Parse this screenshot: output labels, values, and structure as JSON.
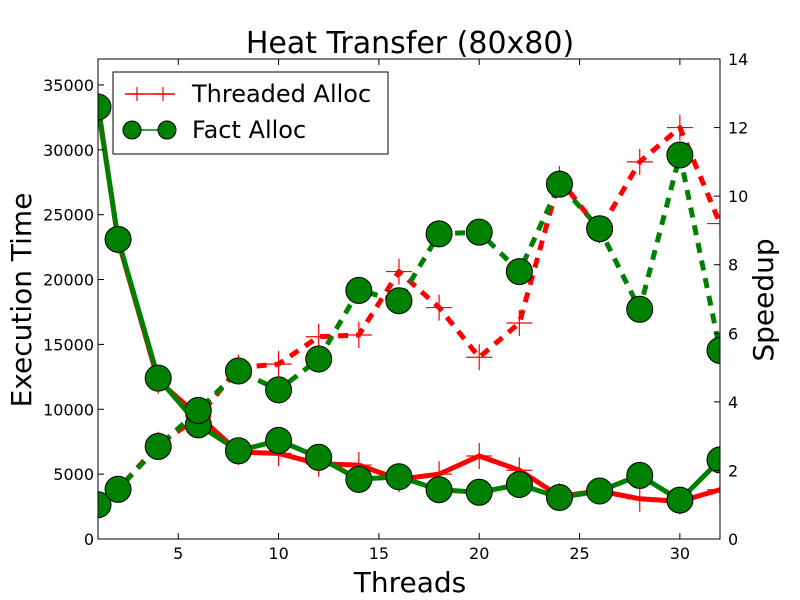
{
  "chart_data": {
    "type": "line",
    "title": "Heat Transfer (80x80)",
    "xlabel": "Threads",
    "ylabel_left": "Execution Time",
    "ylabel_right": "Speedup",
    "xlim": [
      1,
      32
    ],
    "ylim_left": [
      0,
      37000
    ],
    "ylim_right": [
      0,
      14
    ],
    "x_ticks": [
      5,
      10,
      15,
      20,
      25,
      30
    ],
    "y_ticks_left": [
      0,
      5000,
      10000,
      15000,
      20000,
      25000,
      30000,
      35000
    ],
    "y_ticks_right": [
      0,
      2,
      4,
      6,
      8,
      10,
      12,
      14
    ],
    "grid": false,
    "legend_position": "top-left",
    "x": [
      1,
      2,
      4,
      6,
      8,
      10,
      12,
      14,
      16,
      18,
      20,
      22,
      24,
      26,
      28,
      30,
      32
    ],
    "series": [
      {
        "name": "Threaded Alloc",
        "color": "#ff0000",
        "marker": "plus",
        "exec_time": [
          33500,
          23000,
          12200,
          9500,
          6700,
          6600,
          5800,
          5700,
          4600,
          5000,
          6400,
          5300,
          3300,
          3700,
          3100,
          2900,
          3800
        ],
        "speedup": [
          1.0,
          1.45,
          2.75,
          3.55,
          5.0,
          5.1,
          5.9,
          5.95,
          7.8,
          6.75,
          5.3,
          6.3,
          10.5,
          9.0,
          11.0,
          12.0,
          9.2
        ]
      },
      {
        "name": "Fact Alloc",
        "color": "#008000",
        "marker": "circle",
        "exec_time": [
          33300,
          23100,
          12400,
          8800,
          6800,
          7600,
          6300,
          4600,
          4800,
          3800,
          3600,
          4200,
          3200,
          3700,
          4900,
          3000,
          6100
        ],
        "speedup": [
          1.0,
          1.45,
          2.7,
          3.75,
          4.9,
          4.35,
          5.25,
          7.25,
          6.95,
          8.9,
          8.95,
          7.8,
          10.35,
          9.05,
          6.7,
          11.2,
          5.5
        ]
      }
    ]
  }
}
